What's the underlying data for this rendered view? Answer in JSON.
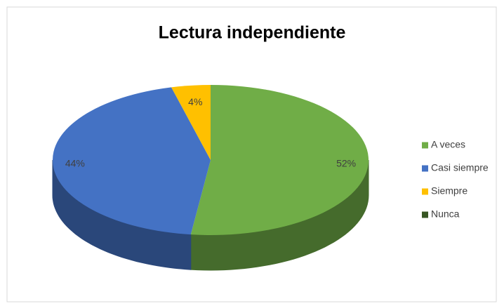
{
  "chart_data": {
    "type": "pie",
    "title": "Lectura independiente",
    "categories": [
      "A veces",
      "Casi siempre",
      "Siempre",
      "Nunca"
    ],
    "values": [
      52,
      44,
      4,
      0
    ],
    "value_labels": [
      "52%",
      "44%",
      "4%",
      null
    ],
    "colors": [
      "#70ad47",
      "#4472c4",
      "#ffc000",
      "#375623"
    ],
    "legend": "right"
  }
}
